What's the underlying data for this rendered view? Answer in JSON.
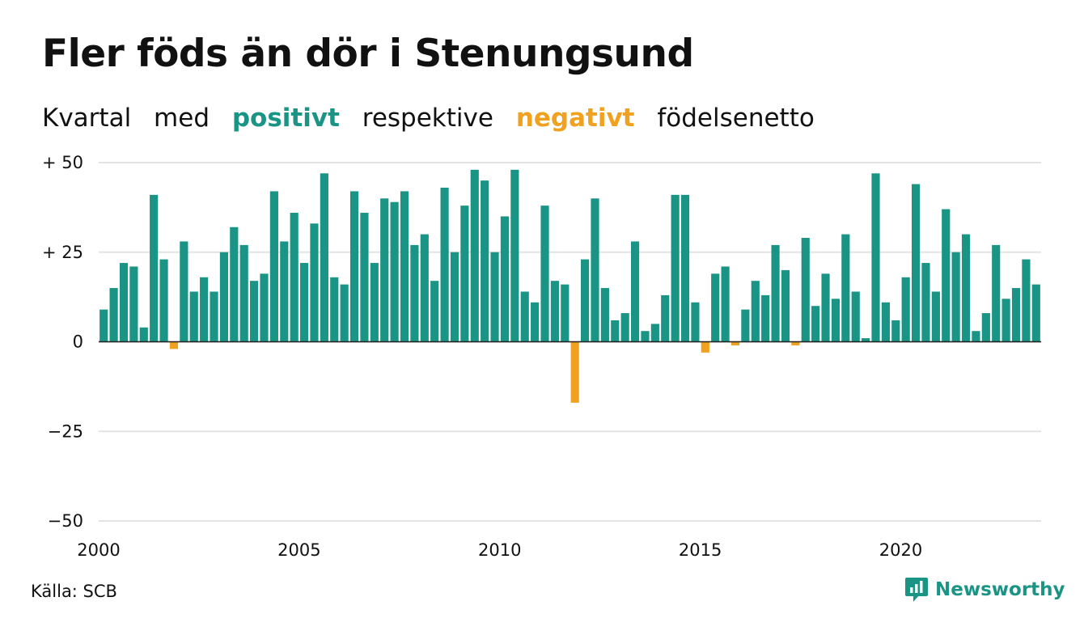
{
  "title": "Fler föds än dör i Stenungsund",
  "subtitle": {
    "w1": "Kvartal",
    "w2": "med",
    "positive": "positivt",
    "w3": "respektive",
    "negative": "negativt",
    "w4": "födelsenetto"
  },
  "colors": {
    "positive": "#1a9485",
    "negative": "#f0a120",
    "grid": "#e3e3e3",
    "text": "#111111"
  },
  "source": "Källa: SCB",
  "logo": {
    "text": "Newsworthy",
    "icon": "newsworthy-logo-icon"
  },
  "chart_data": {
    "type": "bar",
    "x_start": 2000,
    "quarters_per_year": 4,
    "ylim": [
      -50,
      50
    ],
    "yticks": [
      50,
      25,
      0,
      -25,
      -50
    ],
    "ytick_labels": [
      "+ 50",
      "+ 25",
      "0",
      "−25",
      "−50"
    ],
    "xticks": [
      "2000",
      "2005",
      "2010",
      "2015",
      "2020"
    ],
    "grid": true,
    "values": [
      9,
      15,
      22,
      21,
      4,
      41,
      23,
      -2,
      28,
      14,
      18,
      14,
      25,
      32,
      27,
      17,
      19,
      42,
      28,
      36,
      22,
      33,
      47,
      18,
      16,
      42,
      36,
      22,
      40,
      39,
      42,
      27,
      30,
      17,
      43,
      25,
      38,
      48,
      45,
      25,
      35,
      48,
      14,
      11,
      38,
      17,
      16,
      -17,
      23,
      40,
      15,
      6,
      8,
      28,
      3,
      5,
      13,
      41,
      41,
      11,
      -3,
      19,
      21,
      -1,
      9,
      17,
      13,
      27,
      20,
      -1,
      29,
      10,
      19,
      12,
      30,
      14,
      1,
      47,
      11,
      6,
      18,
      44,
      22,
      14,
      37,
      25,
      30,
      3,
      8,
      27,
      12,
      15,
      23,
      16
    ]
  }
}
